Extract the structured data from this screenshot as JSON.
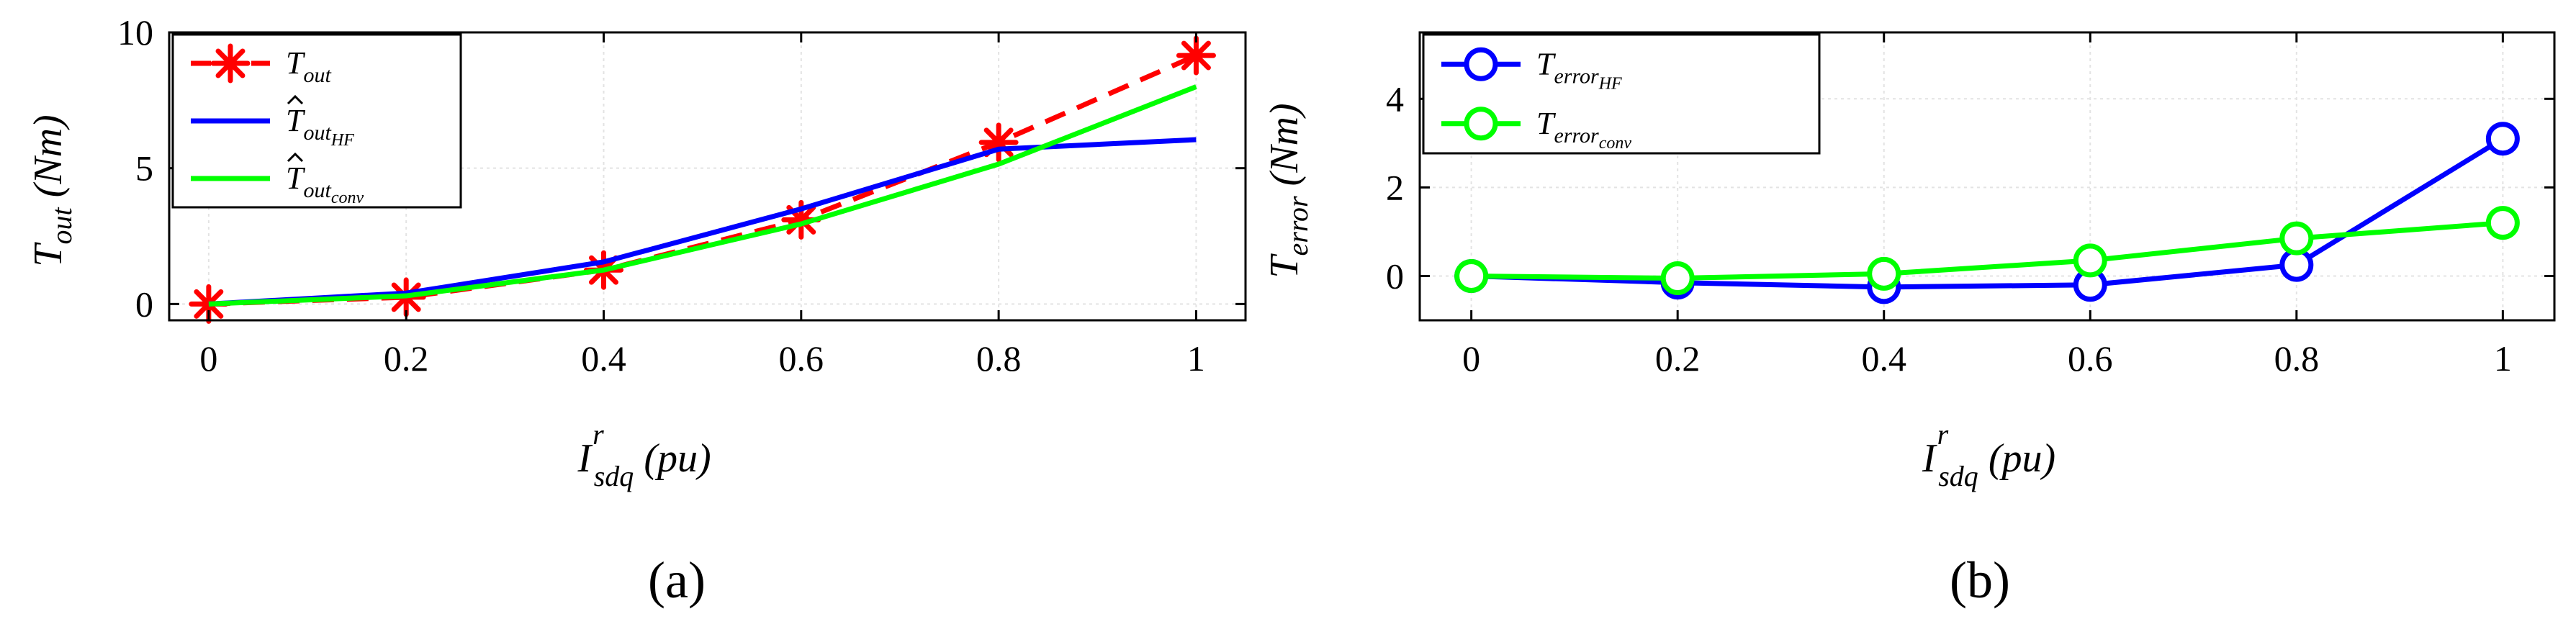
{
  "chart_data": [
    {
      "type": "line",
      "panel": "a",
      "caption": "(a)",
      "x": [
        0,
        0.2,
        0.4,
        0.6,
        0.8,
        1
      ],
      "xticks": [
        "0",
        "0.2",
        "0.4",
        "0.6",
        "0.8",
        "1"
      ],
      "xlim": [
        -0.04,
        1.05
      ],
      "yticks": [
        "0",
        "5",
        "10"
      ],
      "ylim": [
        -0.6,
        10
      ],
      "grid": true,
      "xlabel": {
        "main": "I",
        "sup": "r",
        "sub": "sdq",
        "unit": "(pu)"
      },
      "ylabel": {
        "main": "T",
        "sub": "out",
        "unit": "(Nm)"
      },
      "legend_position": "top-left",
      "series": [
        {
          "name": "T_out",
          "legend_main": "T",
          "legend_sub": "out",
          "hat": false,
          "color": "#ff0000",
          "style": "dashed",
          "marker": "asterisk",
          "values": [
            0,
            0.25,
            1.25,
            3.1,
            5.95,
            9.15
          ]
        },
        {
          "name": "T̂_out_HF",
          "legend_main": "T",
          "legend_sub": "out",
          "legend_subsub": "HF",
          "hat": true,
          "color": "#0000ff",
          "style": "solid",
          "marker": "none",
          "values": [
            0,
            0.4,
            1.55,
            3.5,
            5.7,
            6.05
          ]
        },
        {
          "name": "T̂_out_conv",
          "legend_main": "T",
          "legend_sub": "out",
          "legend_subsub": "conv",
          "hat": true,
          "color": "#00ff00",
          "style": "solid",
          "marker": "none",
          "values": [
            0,
            0.3,
            1.25,
            2.95,
            5.15,
            8.0
          ]
        }
      ]
    },
    {
      "type": "line",
      "panel": "b",
      "caption": "(b)",
      "x": [
        0,
        0.2,
        0.4,
        0.6,
        0.8,
        1
      ],
      "xticks": [
        "0",
        "0.2",
        "0.4",
        "0.6",
        "0.8",
        "1"
      ],
      "xlim": [
        -0.05,
        1.05
      ],
      "yticks": [
        "0",
        "2",
        "4"
      ],
      "ylim": [
        -1,
        5.5
      ],
      "grid": true,
      "xlabel": {
        "main": "I",
        "sup": "r",
        "sub": "sdq",
        "unit": "(pu)"
      },
      "ylabel": {
        "main": "T",
        "sub": "error",
        "unit": "(Nm)"
      },
      "legend_position": "top-left",
      "series": [
        {
          "name": "T_error_HF",
          "legend_main": "T",
          "legend_sub": "error",
          "legend_subsub": "HF",
          "color": "#0000ff",
          "style": "solid",
          "marker": "circle",
          "values": [
            0,
            -0.15,
            -0.25,
            -0.2,
            0.25,
            3.1
          ]
        },
        {
          "name": "T_error_conv",
          "legend_main": "T",
          "legend_sub": "error",
          "legend_subsub": "conv",
          "color": "#00ff00",
          "style": "solid",
          "marker": "circle",
          "values": [
            0,
            -0.05,
            0.05,
            0.35,
            0.85,
            1.2
          ]
        }
      ]
    }
  ]
}
